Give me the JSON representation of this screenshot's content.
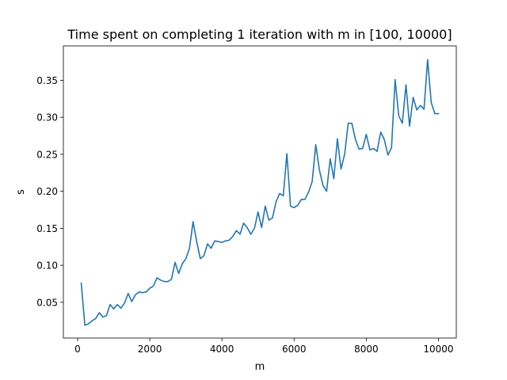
{
  "chart_data": {
    "type": "line",
    "title": "Time spent on completing 1 iteration with m in [100, 10000]",
    "xlabel": "m",
    "ylabel": "s",
    "xlim": [
      -395,
      10495
    ],
    "ylim": [
      0.0017,
      0.3965
    ],
    "x_ticks": [
      0,
      2000,
      4000,
      6000,
      8000,
      10000
    ],
    "x_tick_labels": [
      "0",
      "2000",
      "4000",
      "6000",
      "8000",
      "10000"
    ],
    "y_ticks": [
      0.05,
      0.1,
      0.15,
      0.2,
      0.25,
      0.3,
      0.35
    ],
    "y_tick_labels": [
      "0.05",
      "0.10",
      "0.15",
      "0.20",
      "0.25",
      "0.30",
      "0.35"
    ],
    "grid": false,
    "legend": "none",
    "series": [
      {
        "color": "#1f77b4",
        "x": [
          100,
          200,
          300,
          400,
          500,
          600,
          700,
          800,
          900,
          1000,
          1100,
          1200,
          1300,
          1400,
          1500,
          1600,
          1700,
          1800,
          1900,
          2000,
          2100,
          2200,
          2300,
          2400,
          2500,
          2600,
          2700,
          2800,
          2900,
          3000,
          3100,
          3200,
          3300,
          3400,
          3500,
          3600,
          3700,
          3800,
          3900,
          4000,
          4100,
          4200,
          4300,
          4400,
          4500,
          4600,
          4700,
          4800,
          4900,
          5000,
          5100,
          5200,
          5300,
          5400,
          5500,
          5600,
          5700,
          5800,
          5900,
          6000,
          6100,
          6200,
          6300,
          6400,
          6500,
          6600,
          6700,
          6800,
          6900,
          7000,
          7100,
          7200,
          7300,
          7400,
          7500,
          7600,
          7700,
          7800,
          7900,
          8000,
          8100,
          8200,
          8300,
          8400,
          8500,
          8600,
          8700,
          8800,
          8900,
          9000,
          9100,
          9200,
          9300,
          9400,
          9500,
          9600,
          9700,
          9800,
          9900,
          10000
        ],
        "values": [
          0.076,
          0.019,
          0.021,
          0.025,
          0.028,
          0.036,
          0.03,
          0.032,
          0.047,
          0.041,
          0.047,
          0.042,
          0.049,
          0.062,
          0.051,
          0.06,
          0.064,
          0.063,
          0.064,
          0.069,
          0.072,
          0.083,
          0.08,
          0.078,
          0.078,
          0.081,
          0.104,
          0.089,
          0.102,
          0.109,
          0.123,
          0.159,
          0.132,
          0.109,
          0.113,
          0.129,
          0.123,
          0.133,
          0.132,
          0.131,
          0.133,
          0.134,
          0.139,
          0.147,
          0.142,
          0.157,
          0.151,
          0.142,
          0.15,
          0.172,
          0.151,
          0.18,
          0.161,
          0.164,
          0.186,
          0.197,
          0.194,
          0.251,
          0.18,
          0.178,
          0.181,
          0.189,
          0.189,
          0.199,
          0.213,
          0.263,
          0.229,
          0.208,
          0.2,
          0.244,
          0.217,
          0.271,
          0.23,
          0.25,
          0.292,
          0.292,
          0.27,
          0.257,
          0.258,
          0.277,
          0.256,
          0.258,
          0.254,
          0.28,
          0.27,
          0.249,
          0.259,
          0.351,
          0.302,
          0.292,
          0.344,
          0.288,
          0.327,
          0.31,
          0.316,
          0.311,
          0.378,
          0.32,
          0.305,
          0.305
        ]
      }
    ]
  }
}
